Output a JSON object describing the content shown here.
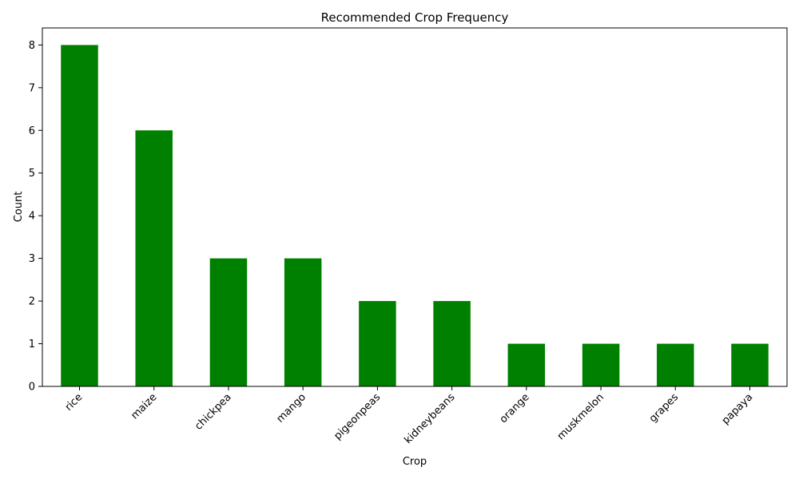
{
  "chart_data": {
    "type": "bar",
    "title": "Recommended Crop Frequency",
    "xlabel": "Crop",
    "ylabel": "Count",
    "categories": [
      "rice",
      "maize",
      "chickpea",
      "mango",
      "pigeonpeas",
      "kidneybeans",
      "orange",
      "muskmelon",
      "grapes",
      "papaya"
    ],
    "values": [
      8,
      6,
      3,
      3,
      2,
      2,
      1,
      1,
      1,
      1
    ],
    "ylim": [
      0,
      8.4
    ],
    "yticks": [
      "0",
      "1",
      "2",
      "3",
      "4",
      "5",
      "6",
      "7",
      "8"
    ],
    "bar_color": "#008000",
    "grid": false,
    "legend": false,
    "xtick_rotation": 45
  }
}
